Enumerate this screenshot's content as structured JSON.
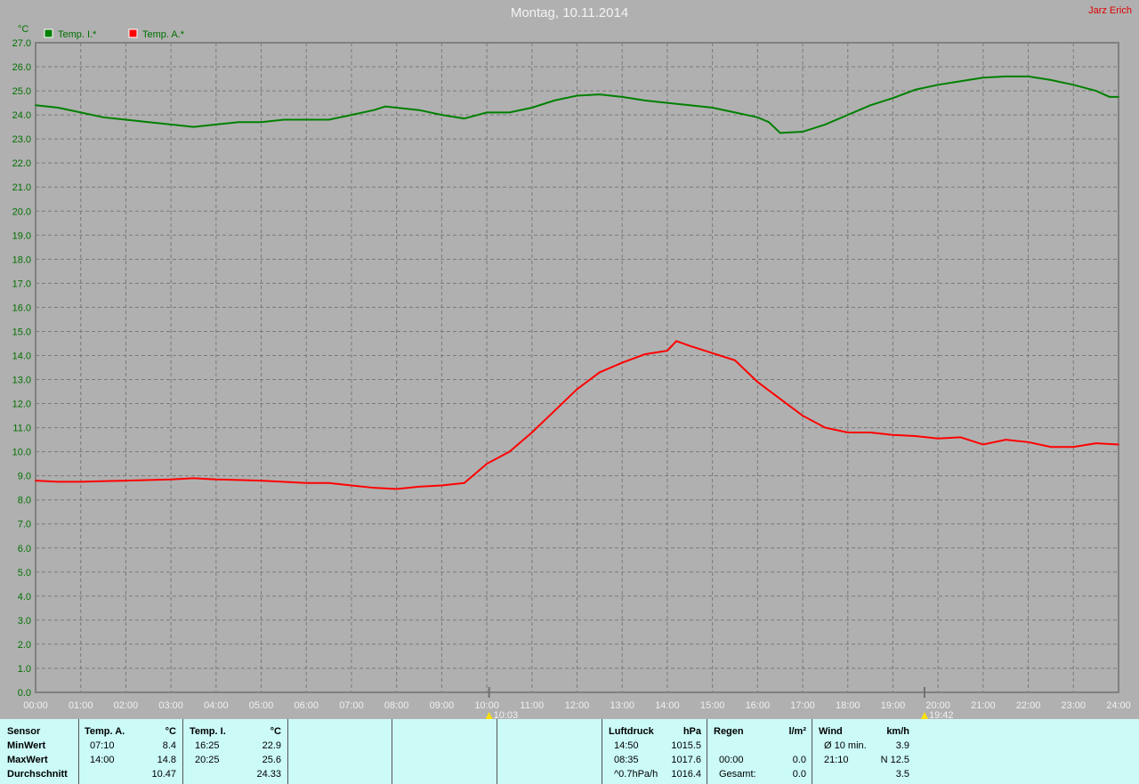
{
  "header": {
    "title": "Montag, 10.11.2014",
    "author": "Jarz Erich"
  },
  "chart_data": {
    "type": "line",
    "ylabel": "°C",
    "ylim": [
      0,
      27
    ],
    "yticks": [
      "0.0",
      "1.0",
      "2.0",
      "3.0",
      "4.0",
      "5.0",
      "6.0",
      "7.0",
      "8.0",
      "9.0",
      "10.0",
      "11.0",
      "12.0",
      "13.0",
      "14.0",
      "15.0",
      "16.0",
      "17.0",
      "18.0",
      "19.0",
      "20.0",
      "21.0",
      "22.0",
      "23.0",
      "24.0",
      "25.0",
      "26.0",
      "27.0"
    ],
    "xticks": [
      "00:00",
      "01:00",
      "02:00",
      "03:00",
      "04:00",
      "05:00",
      "06:00",
      "07:00",
      "08:00",
      "09:00",
      "10:00",
      "11:00",
      "12:00",
      "13:00",
      "14:00",
      "15:00",
      "16:00",
      "17:00",
      "18:00",
      "19:00",
      "20:00",
      "21:00",
      "22:00",
      "23:00",
      "24:00"
    ],
    "grid": true,
    "legend": "top-left",
    "markers": [
      {
        "label": "10:03",
        "time": 10.05
      },
      {
        "label": "19:42",
        "time": 19.7
      }
    ],
    "series": [
      {
        "name": "Temp. I.*",
        "color": "#008000",
        "x": [
          0,
          0.5,
          1,
          1.5,
          2,
          2.5,
          3,
          3.5,
          4,
          4.5,
          5,
          5.5,
          6,
          6.5,
          7,
          7.5,
          7.75,
          8,
          8.5,
          9,
          9.5,
          10,
          10.5,
          11,
          11.5,
          12,
          12.5,
          13,
          13.5,
          14,
          14.5,
          15,
          15.5,
          16,
          16.25,
          16.5,
          17,
          17.5,
          18,
          18.5,
          19,
          19.5,
          20,
          20.5,
          21,
          21.5,
          22,
          22.5,
          23,
          23.5,
          23.8,
          24
        ],
        "y": [
          24.4,
          24.3,
          24.1,
          23.9,
          23.8,
          23.7,
          23.6,
          23.5,
          23.6,
          23.7,
          23.7,
          23.8,
          23.8,
          23.8,
          24.0,
          24.2,
          24.35,
          24.3,
          24.2,
          24.0,
          23.85,
          24.1,
          24.1,
          24.3,
          24.6,
          24.8,
          24.85,
          24.75,
          24.6,
          24.5,
          24.4,
          24.3,
          24.1,
          23.9,
          23.7,
          23.25,
          23.3,
          23.6,
          24.0,
          24.4,
          24.7,
          25.05,
          25.25,
          25.4,
          25.55,
          25.6,
          25.6,
          25.45,
          25.25,
          25.0,
          24.75,
          24.75
        ]
      },
      {
        "name": "Temp. A.*",
        "color": "#ff0000",
        "x": [
          0,
          0.5,
          1,
          2,
          3,
          3.5,
          4,
          5,
          6,
          6.5,
          7,
          7.5,
          8,
          8.5,
          9,
          9.5,
          10,
          10.5,
          11,
          11.5,
          12,
          12.5,
          13,
          13.5,
          14,
          14.2,
          14.5,
          15,
          15.5,
          16,
          16.5,
          17,
          17.5,
          18,
          18.5,
          19,
          19.5,
          20,
          20.5,
          21,
          21.5,
          22,
          22.5,
          23,
          23.5,
          24
        ],
        "y": [
          8.8,
          8.75,
          8.75,
          8.8,
          8.85,
          8.9,
          8.85,
          8.8,
          8.7,
          8.7,
          8.6,
          8.5,
          8.45,
          8.55,
          8.6,
          8.7,
          9.5,
          10.0,
          10.8,
          11.7,
          12.6,
          13.3,
          13.7,
          14.05,
          14.2,
          14.6,
          14.4,
          14.1,
          13.8,
          12.9,
          12.2,
          11.5,
          11.0,
          10.8,
          10.8,
          10.7,
          10.65,
          10.55,
          10.6,
          10.3,
          10.5,
          10.4,
          10.2,
          10.2,
          10.35,
          10.3
        ]
      }
    ]
  },
  "table": {
    "sensor": {
      "h": "Sensor",
      "rows": [
        "MinWert",
        "MaxWert",
        "Durchschnitt"
      ]
    },
    "tempA": {
      "h": "Temp. A.",
      "u": "°C",
      "t": [
        "07:10",
        "14:00",
        ""
      ],
      "v": [
        "8.4",
        "14.8",
        "10.47"
      ]
    },
    "tempI": {
      "h": "Temp. I.",
      "u": "°C",
      "t": [
        "16:25",
        "20:25",
        ""
      ],
      "v": [
        "22.9",
        "25.6",
        "24.33"
      ]
    },
    "luft": {
      "h": "Luftdruck",
      "u": "hPa",
      "t": [
        "14:50",
        "08:35",
        "^0.7hPa/h"
      ],
      "v": [
        "1015.5",
        "1017.6",
        "1016.4"
      ]
    },
    "regen": {
      "h": "Regen",
      "u": "l/m²",
      "t": [
        "",
        "00:00",
        "Gesamt:"
      ],
      "v": [
        "",
        "0.0",
        "0.0"
      ]
    },
    "wind": {
      "h": "Wind",
      "u": "km/h",
      "t": [
        "Ø 10 min.",
        "21:10",
        ""
      ],
      "v": [
        "3.9",
        "N 12.5",
        "3.5"
      ]
    }
  }
}
